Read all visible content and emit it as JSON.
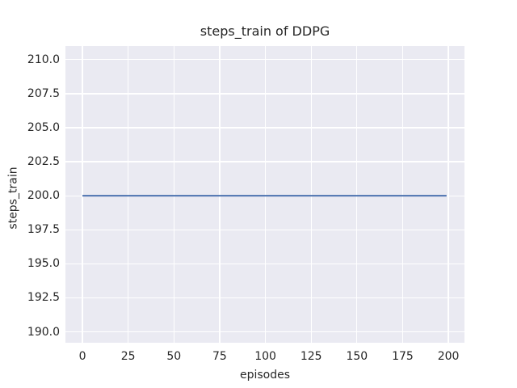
{
  "colors": {
    "figure_background": "#ffffff",
    "axes_background": "#eaeaf2",
    "grid": "#ffffff",
    "line": "#4c72b0",
    "text": "#262626"
  },
  "chart_data": {
    "type": "line",
    "title": "steps_train of DDPG",
    "xlabel": "episodes",
    "ylabel": "steps_train",
    "xlim": [
      -9.3,
      208.8
    ],
    "ylim": [
      189.2,
      211.0
    ],
    "grid": true,
    "legend_position": "none",
    "x_ticks": [
      {
        "value": 0,
        "label": "0"
      },
      {
        "value": 25,
        "label": "25"
      },
      {
        "value": 50,
        "label": "50"
      },
      {
        "value": 75,
        "label": "75"
      },
      {
        "value": 100,
        "label": "100"
      },
      {
        "value": 125,
        "label": "125"
      },
      {
        "value": 150,
        "label": "150"
      },
      {
        "value": 175,
        "label": "175"
      },
      {
        "value": 200,
        "label": "200"
      }
    ],
    "y_ticks": [
      {
        "value": 190.0,
        "label": "190.0"
      },
      {
        "value": 192.5,
        "label": "192.5"
      },
      {
        "value": 195.0,
        "label": "195.0"
      },
      {
        "value": 197.5,
        "label": "197.5"
      },
      {
        "value": 200.0,
        "label": "200.0"
      },
      {
        "value": 202.5,
        "label": "202.5"
      },
      {
        "value": 205.0,
        "label": "205.0"
      },
      {
        "value": 207.5,
        "label": "207.5"
      },
      {
        "value": 210.0,
        "label": "210.0"
      }
    ],
    "series": [
      {
        "name": "steps_train",
        "color": "#4c72b0",
        "line_width": 2,
        "x": [
          0,
          199
        ],
        "y": [
          200,
          200
        ]
      }
    ]
  }
}
